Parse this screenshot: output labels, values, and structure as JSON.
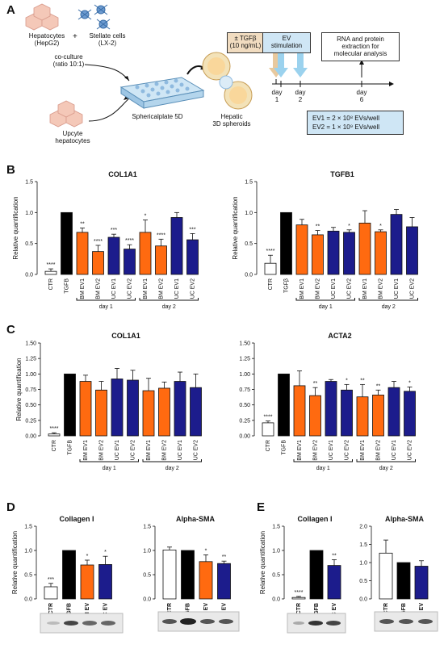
{
  "panel_a": {
    "letter": "A",
    "hepatocytes": "Hepatocytes\n(HepG2)",
    "plus": "+",
    "stellate": "Stellate cells\n(LX-2)",
    "coculture": "co-culture\n(ratio 10:1)",
    "upcyte": "Upcyte\nhepatocytes",
    "plate": "Sphericalplate 5D",
    "spheroids": "Hepatic\n3D spheroids",
    "tgf": "± TGFβ\n(10 ng/mL)",
    "ev_stim": "EV\nstimulation",
    "rna": "RNA and protein\nextraction for\nmolecular analysis",
    "day1": "day\n1",
    "day2": "day\n2",
    "day6": "day\n6",
    "ev1": "EV1 = 2 × 10⁸ EVs/well",
    "ev2": "EV2 = 1 × 10⁹ EVs/well"
  },
  "letters": {
    "b": "B",
    "c": "C",
    "d": "D",
    "e": "E"
  },
  "chart_data": [
    {
      "id": "b1",
      "type": "bar",
      "title": "COL1A1",
      "ylabel": "Relative quantification",
      "ylim": [
        0,
        1.5
      ],
      "yticks": [
        "0.0",
        "0.5",
        "1.0",
        "1.5"
      ],
      "ytick_values": [
        0,
        0.5,
        1,
        1.5
      ],
      "categories": [
        "CTR",
        "TGFB",
        "BM EV1",
        "BM EV2",
        "UC EV1",
        "UC EV2",
        "BM EV1",
        "BM EV2",
        "UC EV1",
        "UC EV2"
      ],
      "values": [
        0.05,
        1.0,
        0.68,
        0.37,
        0.6,
        0.41,
        0.68,
        0.46,
        0.92,
        0.56
      ],
      "errors": [
        0.04,
        0,
        0.07,
        0.1,
        0.05,
        0.07,
        0.2,
        0.11,
        0.08,
        0.1
      ],
      "colors": [
        "#ffffff",
        "#000000",
        "#ff6a10",
        "#ff6a10",
        "#1c1c8c",
        "#1c1c8c",
        "#ff6a10",
        "#ff6a10",
        "#1c1c8c",
        "#1c1c8c"
      ],
      "stars": [
        "****",
        "",
        "**",
        "****",
        "***",
        "****",
        "*",
        "****",
        "",
        "***"
      ],
      "groups": [
        "day 1",
        "day 2"
      ]
    },
    {
      "id": "b2",
      "type": "bar",
      "title": "TGFB1",
      "ylabel": "Relative quantification",
      "ylim": [
        0,
        1.5
      ],
      "yticks": [
        "0.0",
        "0.5",
        "1.0",
        "1.5"
      ],
      "ytick_values": [
        0,
        0.5,
        1,
        1.5
      ],
      "categories": [
        "CTR",
        "TGFβ",
        "BM EV1",
        "BM EV2",
        "UC EV1",
        "UC EV2",
        "BM EV1",
        "BM EV2",
        "UC EV1",
        "UC EV2"
      ],
      "values": [
        0.18,
        1.0,
        0.8,
        0.64,
        0.7,
        0.68,
        0.83,
        0.69,
        0.97,
        0.77
      ],
      "errors": [
        0.13,
        0,
        0.09,
        0.07,
        0.06,
        0.04,
        0.2,
        0.03,
        0.08,
        0.15
      ],
      "colors": [
        "#ffffff",
        "#000000",
        "#ff6a10",
        "#ff6a10",
        "#1c1c8c",
        "#1c1c8c",
        "#ff6a10",
        "#ff6a10",
        "#1c1c8c",
        "#1c1c8c"
      ],
      "stars": [
        "****",
        "",
        "",
        "**",
        "",
        "*",
        "",
        "*",
        "",
        ""
      ],
      "groups": [
        "day 1",
        "day 2"
      ]
    },
    {
      "id": "c1",
      "type": "bar",
      "title": "COL1A1",
      "ylabel": "Relative quantification",
      "ylim": [
        0,
        1.5
      ],
      "yticks": [
        "0.00",
        "0.25",
        "0.50",
        "0.75",
        "1.00",
        "1.25",
        "1.50"
      ],
      "ytick_values": [
        0,
        0.25,
        0.5,
        0.75,
        1,
        1.25,
        1.5
      ],
      "categories": [
        "CTR",
        "TGFB",
        "BM EV1",
        "BM EV2",
        "UC EV1",
        "UC EV2",
        "BM EV1",
        "BM EV2",
        "UC EV1",
        "UC EV2"
      ],
      "values": [
        0.03,
        1.0,
        0.88,
        0.74,
        0.92,
        0.9,
        0.73,
        0.77,
        0.88,
        0.78
      ],
      "errors": [
        0.02,
        0,
        0.1,
        0.14,
        0.17,
        0.16,
        0.2,
        0.1,
        0.15,
        0.22
      ],
      "colors": [
        "#ffffff",
        "#000000",
        "#ff6a10",
        "#ff6a10",
        "#1c1c8c",
        "#1c1c8c",
        "#ff6a10",
        "#ff6a10",
        "#1c1c8c",
        "#1c1c8c"
      ],
      "stars": [
        "****",
        "",
        "",
        "",
        "",
        "",
        "",
        "",
        "",
        ""
      ],
      "groups": [
        "day 1",
        "day 2"
      ]
    },
    {
      "id": "c2",
      "type": "bar",
      "title": "ACTA2",
      "ylabel": "",
      "ylim": [
        0,
        1.5
      ],
      "yticks": [
        "0.00",
        "0.25",
        "0.50",
        "0.75",
        "1.00",
        "1.25",
        "1.50"
      ],
      "ytick_values": [
        0,
        0.25,
        0.5,
        0.75,
        1,
        1.25,
        1.5
      ],
      "categories": [
        "CTR",
        "TGFB",
        "BM EV1",
        "BM EV2",
        "UC EV1",
        "UC EV2",
        "BM EV1",
        "BM EV2",
        "UC EV1",
        "UC EV2"
      ],
      "values": [
        0.21,
        1.0,
        0.81,
        0.65,
        0.88,
        0.74,
        0.63,
        0.66,
        0.78,
        0.72
      ],
      "errors": [
        0.03,
        0,
        0.24,
        0.13,
        0.03,
        0.09,
        0.2,
        0.08,
        0.1,
        0.07
      ],
      "colors": [
        "#ffffff",
        "#000000",
        "#ff6a10",
        "#ff6a10",
        "#1c1c8c",
        "#1c1c8c",
        "#ff6a10",
        "#ff6a10",
        "#1c1c8c",
        "#1c1c8c"
      ],
      "stars": [
        "****",
        "",
        "",
        "**",
        "",
        "*",
        "**",
        "**",
        "",
        "*"
      ],
      "groups": [
        "day 1",
        "day 2"
      ]
    },
    {
      "id": "d1",
      "type": "bar",
      "title": "Collagen I",
      "ylabel": "Relative quantification",
      "ylim": [
        0,
        1.5
      ],
      "yticks": [
        "0.0",
        "0.5",
        "1.0",
        "1.5"
      ],
      "ytick_values": [
        0,
        0.5,
        1,
        1.5
      ],
      "categories": [
        "CTR",
        "TGFB",
        "BM EV",
        "UC EV"
      ],
      "values": [
        0.25,
        1.0,
        0.7,
        0.71
      ],
      "errors": [
        0.07,
        0,
        0.1,
        0.17
      ],
      "colors": [
        "#ffffff",
        "#000000",
        "#ff6a10",
        "#1c1c8c"
      ],
      "stars": [
        "***",
        "",
        "*",
        "*"
      ],
      "groups": []
    },
    {
      "id": "d2",
      "type": "bar",
      "title": "Alpha-SMA",
      "ylabel": "",
      "ylim": [
        0,
        1.5
      ],
      "yticks": [
        "0.0",
        "0.5",
        "1.0",
        "1.5"
      ],
      "ytick_values": [
        0,
        0.5,
        1,
        1.5
      ],
      "categories": [
        "CTR",
        "TGFB",
        "BM EV",
        "UC EV"
      ],
      "values": [
        1.01,
        1.0,
        0.77,
        0.73
      ],
      "errors": [
        0.06,
        0,
        0.14,
        0.05
      ],
      "colors": [
        "#ffffff",
        "#000000",
        "#ff6a10",
        "#1c1c8c"
      ],
      "stars": [
        "",
        "",
        "*",
        "**"
      ],
      "groups": []
    },
    {
      "id": "e1",
      "type": "bar",
      "title": "Collagen I",
      "ylabel": "Relative quantification",
      "ylim": [
        0,
        1.5
      ],
      "yticks": [
        "0.0",
        "0.5",
        "1.0",
        "1.5"
      ],
      "ytick_values": [
        0,
        0.5,
        1,
        1.5
      ],
      "categories": [
        "CTR",
        "TGFB",
        "UC EV"
      ],
      "values": [
        0.03,
        1.0,
        0.69
      ],
      "errors": [
        0.02,
        0,
        0.12
      ],
      "colors": [
        "#ffffff",
        "#000000",
        "#1c1c8c"
      ],
      "stars": [
        "****",
        "",
        "**"
      ],
      "groups": []
    },
    {
      "id": "e2",
      "type": "bar",
      "title": "Alpha-SMA",
      "ylabel": "",
      "ylim": [
        0,
        2.0
      ],
      "yticks": [
        "0.0",
        "0.5",
        "1.0",
        "1.5",
        "2.0"
      ],
      "ytick_values": [
        0,
        0.5,
        1,
        1.5,
        2
      ],
      "categories": [
        "CTR",
        "TGFB",
        "UC EV"
      ],
      "values": [
        1.26,
        1.0,
        0.9
      ],
      "errors": [
        0.36,
        0,
        0.15
      ],
      "colors": [
        "#ffffff",
        "#000000",
        "#1c1c8c"
      ],
      "stars": [
        "",
        "",
        ""
      ],
      "groups": []
    }
  ]
}
